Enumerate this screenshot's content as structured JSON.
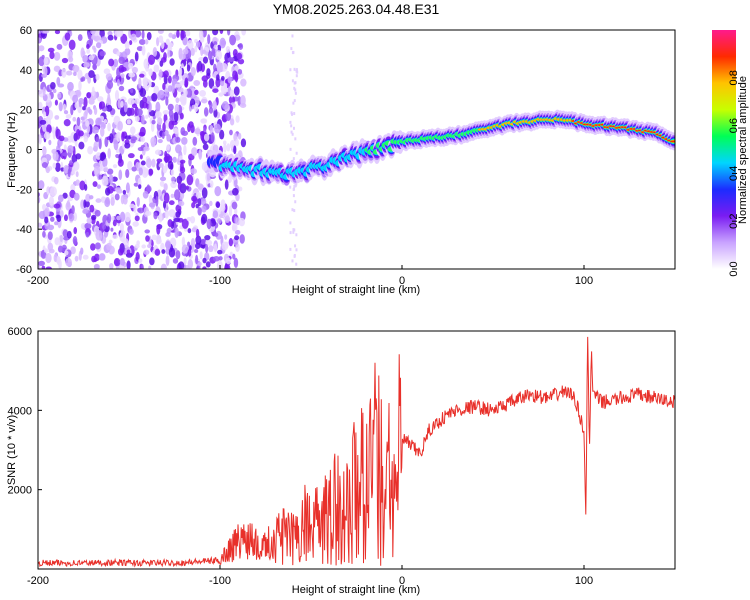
{
  "title": "YM08.2025.263.04.48.E31",
  "chart_data": [
    {
      "type": "heatmap",
      "name": "spectrogram",
      "xlabel": "Height of straight line (km)",
      "ylabel": "Frequency (Hz)",
      "xlim": [
        -200,
        150
      ],
      "ylim": [
        -60,
        60
      ],
      "xticks": [
        -200,
        -100,
        0,
        100
      ],
      "yticks": [
        -60,
        -40,
        -20,
        0,
        20,
        40,
        60
      ],
      "colorbar": {
        "label": "Normalized spectral amplitude",
        "range": [
          0,
          1
        ],
        "ticks": [
          "0.0",
          "0.2",
          "0.4",
          "0.6",
          "0.8"
        ],
        "colormap": [
          "#ffffff",
          "#c9a3ff",
          "#7a1cf2",
          "#1c2cff",
          "#00d5ff",
          "#00ff55",
          "#c8ff00",
          "#ffc300",
          "#ff2a00",
          "#ff1a8c"
        ]
      },
      "ridge": {
        "x": [
          -105,
          -95,
          -85,
          -75,
          -65,
          -55,
          -45,
          -35,
          -25,
          -15,
          -5,
          0,
          10,
          20,
          30,
          40,
          50,
          60,
          70,
          80,
          90,
          100,
          110,
          120,
          130,
          140,
          150
        ],
        "frequency": [
          -6,
          -8,
          -10,
          -11,
          -12,
          -11,
          -9,
          -6,
          -2,
          0,
          2,
          4,
          5,
          6,
          7,
          9,
          11,
          13,
          14,
          15,
          15,
          13,
          12,
          11,
          10,
          8,
          4
        ]
      },
      "noise_region_x": [
        -200,
        -95
      ]
    },
    {
      "type": "line",
      "name": "snr",
      "xlabel": "Height of straight line (km)",
      "ylabel": "SNR (10 * v/v)",
      "xlim": [
        -200,
        150
      ],
      "ylim": [
        0,
        6000
      ],
      "xticks": [
        -200,
        -100,
        0,
        100
      ],
      "yticks": [
        2000,
        4000,
        6000
      ],
      "line_color": "#e8302a",
      "series": [
        {
          "name": "SNR",
          "x": [
            -200,
            -180,
            -160,
            -140,
            -120,
            -100,
            -95,
            -90,
            -85,
            -80,
            -75,
            -70,
            -65,
            -60,
            -55,
            -50,
            -45,
            -40,
            -35,
            -30,
            -25,
            -20,
            -15,
            -10,
            -5,
            0,
            5,
            10,
            15,
            20,
            25,
            30,
            40,
            50,
            60,
            70,
            80,
            90,
            95,
            100,
            101,
            102,
            103,
            104,
            105,
            110,
            120,
            130,
            140,
            150
          ],
          "y": [
            150,
            150,
            160,
            150,
            160,
            220,
            500,
            700,
            800,
            800,
            650,
            700,
            1100,
            800,
            1300,
            1200,
            1600,
            1400,
            2000,
            1700,
            2400,
            2600,
            3200,
            2500,
            3000,
            3300,
            3100,
            2900,
            3500,
            3700,
            3900,
            4000,
            4100,
            4000,
            4200,
            4400,
            4300,
            4500,
            4300,
            3500,
            1300,
            6000,
            2800,
            5600,
            4400,
            4200,
            4300,
            4400,
            4300,
            4200
          ]
        }
      ]
    }
  ]
}
